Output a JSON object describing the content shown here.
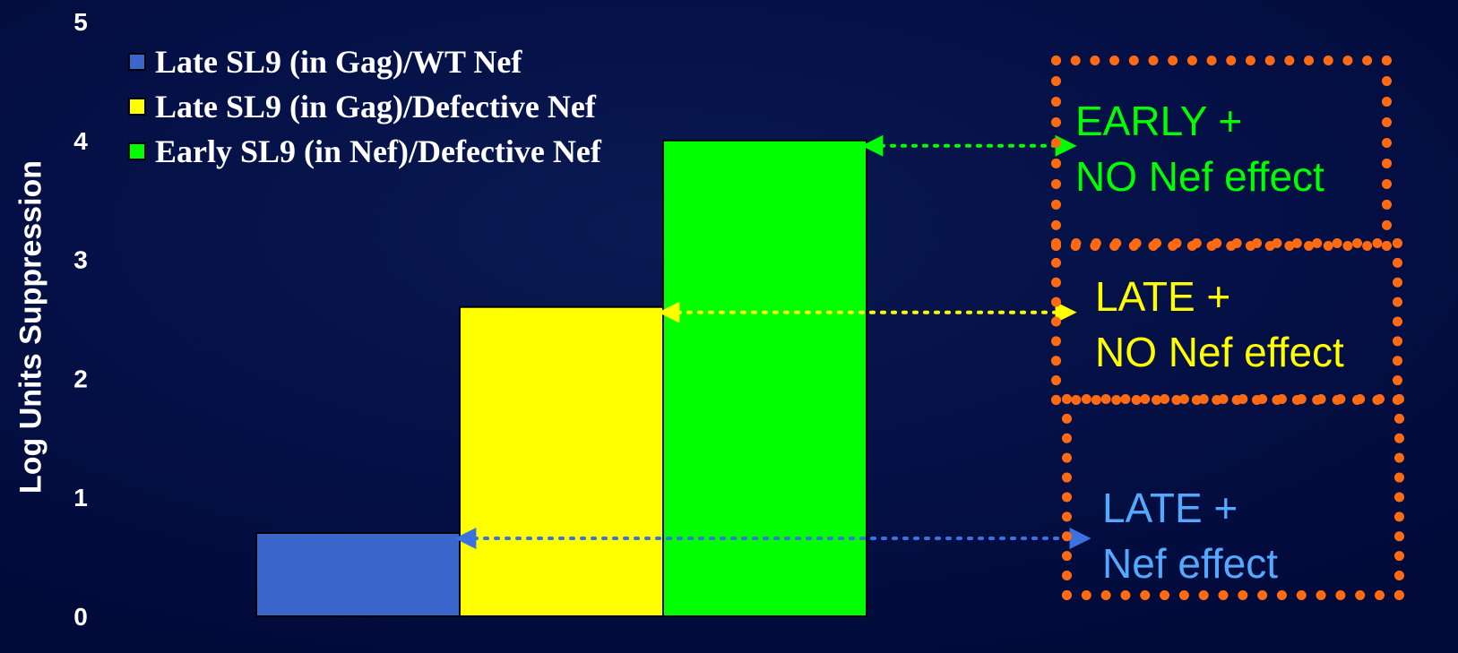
{
  "chart_data": {
    "type": "bar",
    "ylabel": "Log Units Suppression",
    "ylim": [
      0,
      5
    ],
    "yticks": [
      "0",
      "1",
      "2",
      "3",
      "4",
      "5"
    ],
    "series": [
      {
        "name": "Late SL9 (in Gag)/WT Nef",
        "value": 0.7,
        "color": "#3a66cc"
      },
      {
        "name": "Late SL9 (in Gag)/Defective Nef",
        "value": 2.6,
        "color": "#ffff00"
      },
      {
        "name": "Early SL9 (in Nef)/Defective Nef",
        "value": 4.0,
        "color": "#00ff00"
      }
    ],
    "grid": false,
    "legend_position": "top-left"
  },
  "legend": [
    {
      "label": "Late SL9 (in Gag)/WT Nef",
      "color": "#3a66cc"
    },
    {
      "label": "Late SL9 (in Gag)/Defective Nef",
      "color": "#ffff00"
    },
    {
      "label": "Early SL9 (in Nef)/Defective Nef",
      "color": "#00ff00"
    }
  ],
  "callouts": [
    {
      "line1": "EARLY +",
      "line2": "NO Nef effect",
      "color": "#00ff00"
    },
    {
      "line1": "LATE +",
      "line2": "NO Nef effect",
      "color": "#ffff00"
    },
    {
      "line1": "LATE +",
      "line2": "Nef effect",
      "color": "#55a8ff"
    }
  ],
  "colors": {
    "callout_border": "#ff6a13",
    "blue_arrow": "#3a72e0",
    "background": "#041046"
  }
}
